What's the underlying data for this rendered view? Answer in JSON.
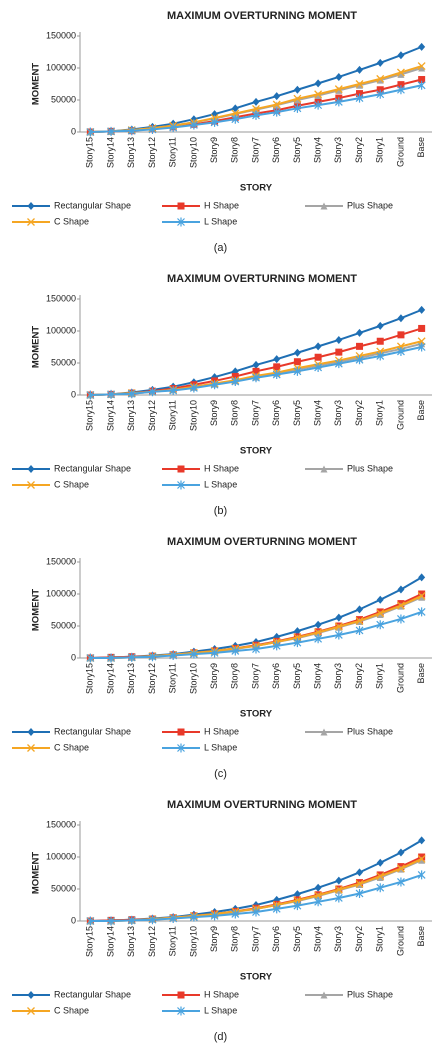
{
  "chart_data": [
    {
      "type": "line",
      "title": "MAXIMUM OVERTURNING MOMENT",
      "x_label": "STORY",
      "y_label": "MOMENT",
      "caption": "(a)",
      "categories": [
        "Story15",
        "Story14",
        "Story13",
        "Story12",
        "Story11",
        "Story10",
        "Story9",
        "Story8",
        "Story7",
        "Story6",
        "Story5",
        "Story4",
        "Story3",
        "Story2",
        "Story1",
        "Ground",
        "Base"
      ],
      "ylim": [
        0,
        150000
      ],
      "yticks": [
        0,
        50000,
        100000,
        150000
      ],
      "grid": false,
      "series": [
        {
          "name": "Rectangular Shape",
          "color": "#1f6fb4",
          "marker": "diamond",
          "values": [
            0,
            1000,
            4000,
            8000,
            13000,
            20000,
            28000,
            37000,
            47000,
            56000,
            66000,
            76000,
            86000,
            97000,
            108000,
            120000,
            133000
          ]
        },
        {
          "name": "H Shape",
          "color": "#e8392a",
          "marker": "square",
          "values": [
            0,
            1000,
            2000,
            5000,
            8000,
            12000,
            17000,
            23000,
            29000,
            34000,
            41000,
            47000,
            53000,
            60000,
            66000,
            74000,
            82000
          ]
        },
        {
          "name": "Plus Shape",
          "color": "#a5a5a5",
          "marker": "triangle",
          "values": [
            0,
            1000,
            3000,
            6000,
            10000,
            15000,
            21000,
            28000,
            35000,
            42000,
            50000,
            57000,
            65000,
            73000,
            81000,
            90000,
            100000
          ]
        },
        {
          "name": "C Shape",
          "color": "#f5a623",
          "marker": "x",
          "values": [
            0,
            1000,
            3000,
            6000,
            10000,
            15000,
            22000,
            29000,
            36000,
            43000,
            52000,
            59000,
            67000,
            75000,
            83000,
            93000,
            103000
          ]
        },
        {
          "name": "L Shape",
          "color": "#4aa3df",
          "marker": "star",
          "values": [
            0,
            1000,
            2000,
            4000,
            7000,
            11000,
            15000,
            20000,
            26000,
            31000,
            37000,
            42000,
            47000,
            53000,
            59000,
            66000,
            73000
          ]
        }
      ]
    },
    {
      "type": "line",
      "title": "MAXIMUM OVERTURNING MOMENT",
      "x_label": "STORY",
      "y_label": "MOMENT",
      "caption": "(b)",
      "categories": [
        "Story15",
        "Story14",
        "Story13",
        "Story12",
        "Story11",
        "Story10",
        "Story9",
        "Story8",
        "Story7",
        "Story6",
        "Story5",
        "Story4",
        "Story3",
        "Story2",
        "Story1",
        "Ground",
        "Base"
      ],
      "ylim": [
        0,
        150000
      ],
      "yticks": [
        0,
        50000,
        100000,
        150000
      ],
      "grid": false,
      "series": [
        {
          "name": "Rectangular Shape",
          "color": "#1f6fb4",
          "marker": "diamond",
          "values": [
            0,
            1000,
            4000,
            8000,
            13000,
            20000,
            28000,
            37000,
            47000,
            56000,
            66000,
            76000,
            86000,
            97000,
            108000,
            120000,
            133000
          ]
        },
        {
          "name": "H Shape",
          "color": "#e8392a",
          "marker": "square",
          "values": [
            0,
            1000,
            3000,
            6000,
            10000,
            16000,
            22000,
            29000,
            37000,
            44000,
            52000,
            59000,
            67000,
            76000,
            84000,
            94000,
            104000
          ]
        },
        {
          "name": "Plus Shape",
          "color": "#a5a5a5",
          "marker": "triangle",
          "values": [
            0,
            1000,
            2000,
            5000,
            8000,
            12000,
            17000,
            22000,
            28000,
            34000,
            40000,
            46000,
            52000,
            58000,
            65000,
            72000,
            80000
          ]
        },
        {
          "name": "C Shape",
          "color": "#f5a623",
          "marker": "x",
          "values": [
            0,
            1000,
            3000,
            5000,
            8000,
            13000,
            18000,
            23000,
            30000,
            35000,
            42000,
            48000,
            54000,
            61000,
            68000,
            76000,
            84000
          ]
        },
        {
          "name": "L Shape",
          "color": "#4aa3df",
          "marker": "star",
          "values": [
            0,
            1000,
            2000,
            5000,
            7000,
            11000,
            16000,
            21000,
            27000,
            32000,
            37000,
            43000,
            49000,
            55000,
            61000,
            68000,
            75000
          ]
        }
      ]
    },
    {
      "type": "line",
      "title": "MAXIMUM OVERTURNING MOMENT",
      "x_label": "STORY",
      "y_label": "MOMENT",
      "caption": "(c)",
      "categories": [
        "Story15",
        "Story14",
        "Story13",
        "Story12",
        "Story11",
        "Story10",
        "Story9",
        "Story8",
        "Story7",
        "Story6",
        "Story5",
        "Story4",
        "Story3",
        "Story2",
        "Story1",
        "Ground",
        "Base"
      ],
      "ylim": [
        0,
        150000
      ],
      "yticks": [
        0,
        50000,
        100000,
        150000
      ],
      "grid": false,
      "series": [
        {
          "name": "Rectangular Shape",
          "color": "#1f6fb4",
          "marker": "diamond",
          "values": [
            0,
            1000,
            2000,
            4000,
            6000,
            10000,
            14000,
            19000,
            25000,
            33000,
            42000,
            52000,
            63000,
            76000,
            91000,
            107000,
            126000
          ]
        },
        {
          "name": "H Shape",
          "color": "#e8392a",
          "marker": "square",
          "values": [
            0,
            1000,
            2000,
            3000,
            5000,
            8000,
            11000,
            15000,
            20000,
            26000,
            33000,
            41000,
            50000,
            60000,
            72000,
            85000,
            100000
          ]
        },
        {
          "name": "Plus Shape",
          "color": "#a5a5a5",
          "marker": "triangle",
          "values": [
            0,
            0,
            1000,
            3000,
            5000,
            8000,
            10000,
            14000,
            19000,
            25000,
            31000,
            39000,
            48000,
            57000,
            68000,
            81000,
            95000
          ]
        },
        {
          "name": "C Shape",
          "color": "#f5a623",
          "marker": "x",
          "values": [
            0,
            0,
            1000,
            3000,
            5000,
            8000,
            11000,
            15000,
            19000,
            25000,
            32000,
            40000,
            49000,
            58000,
            70000,
            82000,
            97000
          ]
        },
        {
          "name": "L Shape",
          "color": "#4aa3df",
          "marker": "star",
          "values": [
            0,
            0,
            1000,
            2000,
            4000,
            6000,
            8000,
            11000,
            14000,
            19000,
            24000,
            30000,
            36000,
            43000,
            52000,
            61000,
            72000
          ]
        }
      ]
    },
    {
      "type": "line",
      "title": "MAXIMUM OVERTURNING MOMENT",
      "x_label": "STORY",
      "y_label": "MOMENT",
      "caption": "(d)",
      "categories": [
        "Story15",
        "Story14",
        "Story13",
        "Story12",
        "Story11",
        "Story10",
        "Story9",
        "Story8",
        "Story7",
        "Story6",
        "Story5",
        "Story4",
        "Story3",
        "Story2",
        "Story1",
        "Ground",
        "Base"
      ],
      "ylim": [
        0,
        150000
      ],
      "yticks": [
        0,
        50000,
        100000,
        150000
      ],
      "grid": false,
      "series": [
        {
          "name": "Rectangular Shape",
          "color": "#1f6fb4",
          "marker": "diamond",
          "values": [
            0,
            1000,
            2000,
            4000,
            6000,
            10000,
            14000,
            19000,
            25000,
            33000,
            42000,
            52000,
            63000,
            76000,
            91000,
            107000,
            126000
          ]
        },
        {
          "name": "H Shape",
          "color": "#e8392a",
          "marker": "square",
          "values": [
            0,
            1000,
            2000,
            3000,
            5000,
            8000,
            11000,
            15000,
            20000,
            26000,
            33000,
            41000,
            50000,
            60000,
            72000,
            85000,
            100000
          ]
        },
        {
          "name": "Plus Shape",
          "color": "#a5a5a5",
          "marker": "triangle",
          "values": [
            0,
            0,
            1000,
            3000,
            5000,
            8000,
            10000,
            14000,
            19000,
            25000,
            31000,
            39000,
            48000,
            57000,
            68000,
            81000,
            95000
          ]
        },
        {
          "name": "C Shape",
          "color": "#f5a623",
          "marker": "x",
          "values": [
            0,
            0,
            1000,
            3000,
            5000,
            8000,
            11000,
            15000,
            19000,
            25000,
            32000,
            40000,
            49000,
            58000,
            70000,
            82000,
            97000
          ]
        },
        {
          "name": "L Shape",
          "color": "#4aa3df",
          "marker": "star",
          "values": [
            0,
            0,
            1000,
            2000,
            4000,
            6000,
            8000,
            11000,
            14000,
            19000,
            24000,
            30000,
            36000,
            43000,
            52000,
            61000,
            72000
          ]
        }
      ]
    }
  ]
}
